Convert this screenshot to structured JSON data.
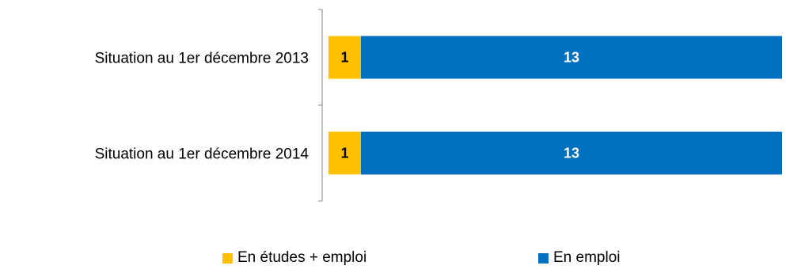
{
  "chart_data": {
    "type": "bar",
    "orientation": "horizontal",
    "stacked": true,
    "categories": [
      "Situation au 1er décembre 2013",
      "Situation au 1er décembre 2014"
    ],
    "series": [
      {
        "name": "En études + emploi",
        "values": [
          1,
          1
        ],
        "color": "#FFC000"
      },
      {
        "name": "En emploi",
        "values": [
          13,
          13
        ],
        "color": "#0070C0"
      }
    ],
    "xlim": [
      0,
      14
    ],
    "grid": false,
    "legend_position": "bottom"
  }
}
